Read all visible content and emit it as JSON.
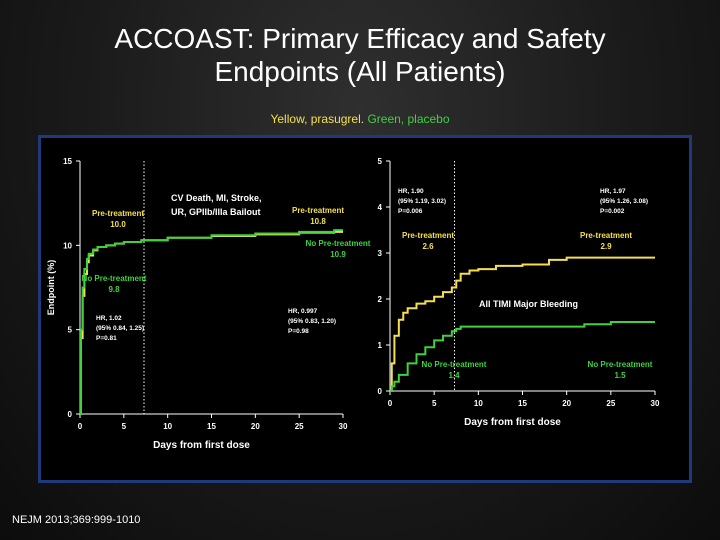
{
  "slide": {
    "title_line1": "ACCOAST:  Primary Efficacy and Safety",
    "title_line2": "Endpoints (All Patients)",
    "subtitle_yellow": "Yellow, prasugrel.",
    "subtitle_green": "Green, placebo",
    "citation": "NEJM 2013;369:999-1010"
  },
  "colors": {
    "panel_bg": "#000000",
    "frame_bg": "#1f3a7a",
    "prasugrel": "#f4e04d",
    "placebo": "#3fd13f",
    "text": "#ffffff",
    "axis": "#ffffff"
  },
  "chart_data": [
    {
      "type": "line",
      "ylabel": "Endpoint (%)",
      "xlabel": "Days from first dose",
      "xlim": [
        0,
        30
      ],
      "ylim": [
        0,
        15
      ],
      "x_ticks": [
        0,
        5,
        10,
        15,
        20,
        25,
        30
      ],
      "y_ticks": [
        0,
        5,
        10,
        15
      ],
      "dotted_vline_x": 7.3,
      "grid": false,
      "endpoint_label_line1": "CV Death, MI, Stroke,",
      "endpoint_label_line2": "UR, GPIIb/IIIa Bailout",
      "series": [
        {
          "color": "yellow",
          "x": [
            0,
            0.1,
            0.3,
            0.5,
            0.8,
            1,
            1.5,
            2,
            3,
            4,
            5,
            7,
            10,
            15,
            20,
            25,
            29,
            30
          ],
          "y": [
            0,
            4.5,
            7.0,
            8.3,
            9.0,
            9.4,
            9.7,
            9.9,
            10.0,
            10.1,
            10.2,
            10.3,
            10.45,
            10.55,
            10.65,
            10.75,
            10.8,
            10.8
          ]
        },
        {
          "color": "green",
          "x": [
            0,
            0.1,
            0.3,
            0.5,
            0.8,
            1,
            1.5,
            2,
            3,
            4,
            5,
            7,
            10,
            15,
            20,
            25,
            29,
            30
          ],
          "y": [
            0,
            5.0,
            7.5,
            8.6,
            9.2,
            9.5,
            9.75,
            9.9,
            10.0,
            10.1,
            10.2,
            10.3,
            10.45,
            10.6,
            10.7,
            10.8,
            10.9,
            10.9
          ]
        }
      ],
      "annotations": [
        {
          "line1": "Pre-treatment",
          "line2": "10.0",
          "color": "yellow"
        },
        {
          "line1": "Pre-treatment",
          "line2": "10.8",
          "color": "yellow"
        },
        {
          "line1": "No Pre-treatment",
          "line2": "9.8",
          "color": "green"
        },
        {
          "line1": "No Pre-treatment",
          "line2": "10.9",
          "color": "green"
        }
      ],
      "stats": [
        {
          "line1": "HR, 1.02",
          "line2": "(95% 0.84, 1.25)",
          "line3": "P=0.81"
        },
        {
          "line1": "HR, 0.997",
          "line2": "(95% 0.83, 1.20)",
          "line3": "P=0.98"
        }
      ]
    },
    {
      "type": "line",
      "xlabel": "Days from first dose",
      "xlim": [
        0,
        30
      ],
      "ylim": [
        0,
        5
      ],
      "x_ticks": [
        0,
        5,
        10,
        15,
        20,
        25,
        30
      ],
      "y_ticks": [
        0,
        1,
        2,
        3,
        4,
        5
      ],
      "dotted_vline_x": 7.3,
      "grid": false,
      "endpoint_label": "All TIMI Major Bleeding",
      "series": [
        {
          "color": "yellow",
          "x": [
            0,
            0.2,
            0.5,
            1,
            1.5,
            2,
            3,
            4,
            5,
            6,
            7,
            7.5,
            8,
            9,
            10,
            12,
            15,
            18,
            20,
            25,
            30
          ],
          "y": [
            0,
            0.6,
            1.2,
            1.55,
            1.7,
            1.8,
            1.9,
            1.95,
            2.05,
            2.15,
            2.25,
            2.4,
            2.55,
            2.62,
            2.65,
            2.72,
            2.75,
            2.85,
            2.9,
            2.9,
            2.9
          ]
        },
        {
          "color": "green",
          "x": [
            0,
            0.2,
            0.5,
            1,
            2,
            3,
            4,
            5,
            6,
            7,
            7.5,
            8,
            10,
            15,
            20,
            22,
            25,
            30
          ],
          "y": [
            0,
            0.1,
            0.2,
            0.35,
            0.6,
            0.8,
            0.95,
            1.1,
            1.2,
            1.3,
            1.35,
            1.4,
            1.4,
            1.4,
            1.4,
            1.45,
            1.5,
            1.5
          ]
        }
      ],
      "annotations": [
        {
          "line1": "Pre-treatment",
          "line2": "2.6",
          "color": "yellow"
        },
        {
          "line1": "Pre-treatment",
          "line2": "2.9",
          "color": "yellow"
        },
        {
          "line1": "No Pre-treatment",
          "line2": "1.4",
          "color": "green"
        },
        {
          "line1": "No Pre-treatment",
          "line2": "1.5",
          "color": "green"
        }
      ],
      "stats": [
        {
          "line1": "HR, 1.90",
          "line2": "(95% 1.19, 3.02)",
          "line3": "P=0.006"
        },
        {
          "line1": "HR, 1.97",
          "line2": "(95% 1.26, 3.08)",
          "line3": "P=0.002"
        }
      ]
    }
  ]
}
